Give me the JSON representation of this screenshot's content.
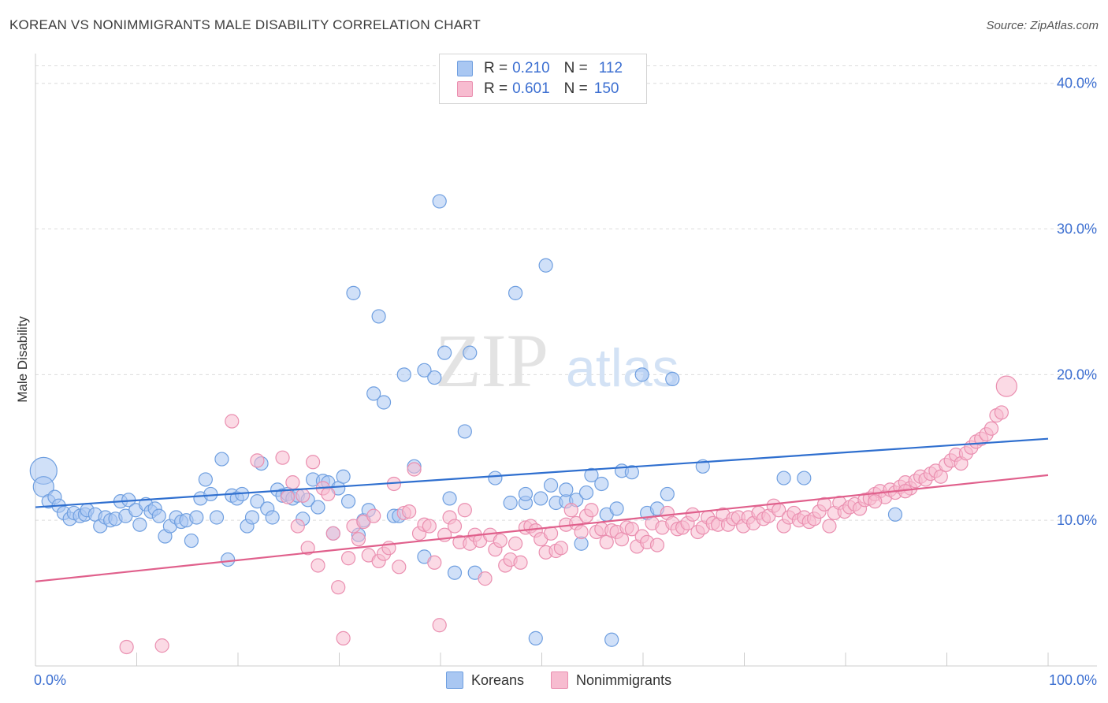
{
  "header": {
    "title": "KOREAN VS NONIMMIGRANTS MALE DISABILITY CORRELATION CHART",
    "source": "Source: ZipAtlas.com"
  },
  "watermark": {
    "zip": "ZIP",
    "atlas": "atlas"
  },
  "legend": {
    "koreans": {
      "r_label": "R = ",
      "r_value": "0.210",
      "n_label": "N = ",
      "n_value": "112"
    },
    "nonimmigrants": {
      "r_label": "R = ",
      "r_value": "0.601",
      "n_label": "N = ",
      "n_value": "150"
    }
  },
  "colors": {
    "koreans_fill": "#a9c7f2",
    "koreans_stroke": "#6f9fe0",
    "koreans_line": "#2f6fcf",
    "nonimmigrants_fill": "#f7bcd0",
    "nonimmigrants_stroke": "#ea8fb0",
    "nonimmigrants_line": "#e0608c",
    "tick_text": "#3c6fd1"
  },
  "chart_data": {
    "type": "scatter",
    "title": "KOREAN VS NONIMMIGRANTS MALE DISABILITY CORRELATION CHART",
    "xlabel": "",
    "ylabel": "Male Disability",
    "xlim": [
      0,
      100
    ],
    "ylim": [
      0,
      41.5
    ],
    "x_tick_labels": [
      "0.0%",
      "100.0%"
    ],
    "y_ticks": [
      10,
      20,
      30,
      40
    ],
    "y_tick_labels": [
      "10.0%",
      "20.0%",
      "30.0%",
      "40.0%"
    ],
    "grid": true,
    "legend_position": "top-center",
    "series": [
      {
        "name": "Koreans",
        "R": 0.21,
        "N": 112,
        "trend": {
          "x": [
            0,
            100
          ],
          "y": [
            10.9,
            15.6
          ]
        },
        "points": [
          [
            0.8,
            13.4
          ],
          [
            0.8,
            12.3
          ],
          [
            1.3,
            11.3
          ],
          [
            1.9,
            11.6
          ],
          [
            2.3,
            11.0
          ],
          [
            2.8,
            10.5
          ],
          [
            3.4,
            10.1
          ],
          [
            3.8,
            10.5
          ],
          [
            4.4,
            10.3
          ],
          [
            4.9,
            10.4
          ],
          [
            5.1,
            10.7
          ],
          [
            5.9,
            10.4
          ],
          [
            6.4,
            9.6
          ],
          [
            6.9,
            10.2
          ],
          [
            7.4,
            10.0
          ],
          [
            7.9,
            10.1
          ],
          [
            8.4,
            11.3
          ],
          [
            8.9,
            10.3
          ],
          [
            9.2,
            11.4
          ],
          [
            9.9,
            10.7
          ],
          [
            10.3,
            9.7
          ],
          [
            10.9,
            11.1
          ],
          [
            11.4,
            10.6
          ],
          [
            11.8,
            10.8
          ],
          [
            12.2,
            10.3
          ],
          [
            12.8,
            8.9
          ],
          [
            13.3,
            9.6
          ],
          [
            13.9,
            10.2
          ],
          [
            14.4,
            9.9
          ],
          [
            14.9,
            10.0
          ],
          [
            15.4,
            8.6
          ],
          [
            15.9,
            10.2
          ],
          [
            16.3,
            11.5
          ],
          [
            16.8,
            12.8
          ],
          [
            17.3,
            11.8
          ],
          [
            17.9,
            10.2
          ],
          [
            18.4,
            14.2
          ],
          [
            19.0,
            7.3
          ],
          [
            19.4,
            11.7
          ],
          [
            19.9,
            11.5
          ],
          [
            20.4,
            11.8
          ],
          [
            20.9,
            9.6
          ],
          [
            21.4,
            10.2
          ],
          [
            21.9,
            11.3
          ],
          [
            22.3,
            13.9
          ],
          [
            22.9,
            10.8
          ],
          [
            23.4,
            10.2
          ],
          [
            23.9,
            12.1
          ],
          [
            24.4,
            11.7
          ],
          [
            24.9,
            11.8
          ],
          [
            25.4,
            11.5
          ],
          [
            25.9,
            11.7
          ],
          [
            26.4,
            10.1
          ],
          [
            26.9,
            11.4
          ],
          [
            27.4,
            12.8
          ],
          [
            27.9,
            10.9
          ],
          [
            28.4,
            12.7
          ],
          [
            28.9,
            12.6
          ],
          [
            29.4,
            9.1
          ],
          [
            29.9,
            12.2
          ],
          [
            30.4,
            13.0
          ],
          [
            30.9,
            11.3
          ],
          [
            31.4,
            25.6
          ],
          [
            31.9,
            9.0
          ],
          [
            32.4,
            10.0
          ],
          [
            32.9,
            10.7
          ],
          [
            33.4,
            18.7
          ],
          [
            33.9,
            24.0
          ],
          [
            34.4,
            18.1
          ],
          [
            35.4,
            10.3
          ],
          [
            35.9,
            10.3
          ],
          [
            36.4,
            20.0
          ],
          [
            37.4,
            13.7
          ],
          [
            38.4,
            7.5
          ],
          [
            38.4,
            20.3
          ],
          [
            39.4,
            19.8
          ],
          [
            39.9,
            31.9
          ],
          [
            40.4,
            21.5
          ],
          [
            40.9,
            11.5
          ],
          [
            41.4,
            6.4
          ],
          [
            42.4,
            16.1
          ],
          [
            42.9,
            21.5
          ],
          [
            43.4,
            6.4
          ],
          [
            45.4,
            12.9
          ],
          [
            46.9,
            11.2
          ],
          [
            47.4,
            25.6
          ],
          [
            48.4,
            11.2
          ],
          [
            48.4,
            11.8
          ],
          [
            49.4,
            1.9
          ],
          [
            49.9,
            11.5
          ],
          [
            50.4,
            27.5
          ],
          [
            50.9,
            12.4
          ],
          [
            51.4,
            11.2
          ],
          [
            52.4,
            11.3
          ],
          [
            52.4,
            12.1
          ],
          [
            53.4,
            11.4
          ],
          [
            53.9,
            8.4
          ],
          [
            54.4,
            11.9
          ],
          [
            54.9,
            13.1
          ],
          [
            55.9,
            12.5
          ],
          [
            56.4,
            10.4
          ],
          [
            56.9,
            1.8
          ],
          [
            57.4,
            10.8
          ],
          [
            57.9,
            13.4
          ],
          [
            58.9,
            13.3
          ],
          [
            59.9,
            20.0
          ],
          [
            60.4,
            10.5
          ],
          [
            61.4,
            10.8
          ],
          [
            62.4,
            11.8
          ],
          [
            62.9,
            19.7
          ],
          [
            65.9,
            13.7
          ],
          [
            73.9,
            12.9
          ],
          [
            75.9,
            12.9
          ],
          [
            84.9,
            10.4
          ]
        ]
      },
      {
        "name": "Nonimmigrants",
        "R": 0.601,
        "N": 150,
        "trend": {
          "x": [
            0,
            100
          ],
          "y": [
            5.8,
            13.1
          ]
        },
        "points": [
          [
            9.0,
            1.3
          ],
          [
            12.5,
            1.4
          ],
          [
            19.4,
            16.8
          ],
          [
            21.9,
            14.1
          ],
          [
            24.4,
            14.3
          ],
          [
            24.9,
            11.6
          ],
          [
            25.4,
            12.6
          ],
          [
            25.9,
            9.6
          ],
          [
            26.4,
            11.7
          ],
          [
            26.9,
            8.1
          ],
          [
            27.4,
            14.0
          ],
          [
            27.9,
            6.9
          ],
          [
            28.4,
            12.2
          ],
          [
            28.9,
            11.8
          ],
          [
            29.4,
            9.1
          ],
          [
            29.9,
            5.4
          ],
          [
            30.4,
            1.9
          ],
          [
            30.9,
            7.4
          ],
          [
            31.4,
            9.6
          ],
          [
            31.9,
            8.7
          ],
          [
            32.4,
            9.9
          ],
          [
            32.9,
            7.6
          ],
          [
            33.4,
            10.3
          ],
          [
            33.9,
            7.2
          ],
          [
            34.4,
            7.7
          ],
          [
            34.9,
            8.1
          ],
          [
            35.4,
            12.5
          ],
          [
            35.9,
            6.8
          ],
          [
            36.4,
            10.5
          ],
          [
            36.9,
            10.6
          ],
          [
            37.4,
            13.5
          ],
          [
            37.9,
            9.1
          ],
          [
            38.4,
            9.7
          ],
          [
            38.9,
            9.6
          ],
          [
            39.4,
            7.1
          ],
          [
            39.9,
            2.8
          ],
          [
            40.4,
            9.0
          ],
          [
            40.9,
            10.2
          ],
          [
            41.4,
            9.6
          ],
          [
            41.9,
            8.5
          ],
          [
            42.4,
            10.7
          ],
          [
            42.9,
            8.4
          ],
          [
            43.4,
            9.0
          ],
          [
            43.9,
            8.6
          ],
          [
            44.4,
            6.0
          ],
          [
            44.9,
            9.0
          ],
          [
            45.4,
            8.0
          ],
          [
            45.9,
            8.6
          ],
          [
            46.4,
            6.9
          ],
          [
            46.9,
            7.3
          ],
          [
            47.4,
            8.4
          ],
          [
            47.9,
            7.1
          ],
          [
            48.4,
            9.5
          ],
          [
            48.9,
            9.6
          ],
          [
            49.4,
            9.3
          ],
          [
            49.9,
            8.7
          ],
          [
            50.4,
            7.8
          ],
          [
            50.9,
            9.1
          ],
          [
            51.4,
            7.9
          ],
          [
            51.9,
            8.1
          ],
          [
            52.4,
            9.7
          ],
          [
            52.9,
            10.7
          ],
          [
            53.4,
            9.8
          ],
          [
            53.9,
            9.2
          ],
          [
            54.4,
            10.3
          ],
          [
            54.9,
            10.7
          ],
          [
            55.4,
            9.2
          ],
          [
            55.9,
            9.4
          ],
          [
            56.4,
            8.5
          ],
          [
            56.9,
            9.3
          ],
          [
            57.4,
            9.2
          ],
          [
            57.9,
            8.7
          ],
          [
            58.4,
            9.5
          ],
          [
            58.9,
            9.4
          ],
          [
            59.4,
            8.2
          ],
          [
            59.9,
            8.9
          ],
          [
            60.4,
            8.5
          ],
          [
            60.9,
            9.8
          ],
          [
            61.4,
            8.3
          ],
          [
            61.9,
            9.5
          ],
          [
            62.4,
            10.5
          ],
          [
            62.9,
            9.8
          ],
          [
            63.4,
            9.4
          ],
          [
            63.9,
            9.5
          ],
          [
            64.4,
            9.8
          ],
          [
            64.9,
            10.4
          ],
          [
            65.4,
            9.2
          ],
          [
            65.9,
            9.5
          ],
          [
            66.4,
            10.2
          ],
          [
            66.9,
            9.8
          ],
          [
            67.4,
            9.7
          ],
          [
            67.9,
            10.4
          ],
          [
            68.4,
            9.7
          ],
          [
            68.9,
            10.1
          ],
          [
            69.4,
            10.2
          ],
          [
            69.9,
            9.6
          ],
          [
            70.4,
            10.2
          ],
          [
            70.9,
            9.8
          ],
          [
            71.4,
            10.5
          ],
          [
            71.9,
            10.1
          ],
          [
            72.4,
            10.3
          ],
          [
            72.9,
            11.0
          ],
          [
            73.4,
            10.7
          ],
          [
            73.9,
            9.6
          ],
          [
            74.4,
            10.2
          ],
          [
            74.9,
            10.5
          ],
          [
            75.4,
            10.0
          ],
          [
            75.9,
            10.2
          ],
          [
            76.4,
            9.9
          ],
          [
            76.9,
            10.1
          ],
          [
            77.4,
            10.6
          ],
          [
            77.9,
            11.1
          ],
          [
            78.4,
            9.6
          ],
          [
            78.9,
            10.5
          ],
          [
            79.4,
            11.2
          ],
          [
            79.9,
            10.6
          ],
          [
            80.4,
            10.9
          ],
          [
            80.9,
            11.1
          ],
          [
            81.4,
            10.8
          ],
          [
            81.9,
            11.4
          ],
          [
            82.4,
            11.5
          ],
          [
            82.9,
            11.8
          ],
          [
            83.4,
            12.0
          ],
          [
            83.9,
            11.6
          ],
          [
            84.4,
            12.1
          ],
          [
            84.9,
            11.9
          ],
          [
            85.4,
            12.3
          ],
          [
            85.9,
            12.6
          ],
          [
            86.4,
            12.2
          ],
          [
            86.9,
            12.7
          ],
          [
            87.4,
            13.0
          ],
          [
            87.9,
            12.8
          ],
          [
            88.4,
            13.2
          ],
          [
            88.9,
            13.4
          ],
          [
            89.4,
            13.0
          ],
          [
            89.9,
            13.8
          ],
          [
            90.4,
            14.1
          ],
          [
            90.9,
            14.5
          ],
          [
            91.4,
            13.9
          ],
          [
            91.9,
            14.6
          ],
          [
            92.4,
            15.0
          ],
          [
            92.9,
            15.4
          ],
          [
            93.4,
            15.6
          ],
          [
            93.9,
            15.9
          ],
          [
            94.4,
            16.3
          ],
          [
            94.9,
            17.2
          ],
          [
            95.4,
            17.4
          ],
          [
            95.9,
            19.2
          ],
          [
            82.9,
            11.3
          ],
          [
            85.9,
            12.0
          ]
        ]
      }
    ]
  },
  "bottom_legend": [
    "Koreans",
    "Nonimmigrants"
  ]
}
